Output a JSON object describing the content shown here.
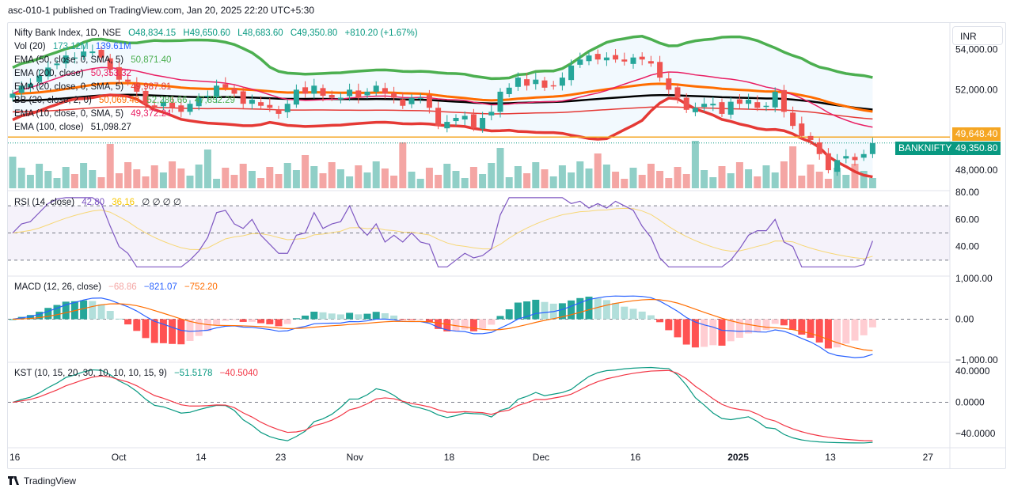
{
  "header": {
    "publish_line": "asc-010-1 published on TradingView.com, Jan 20, 2025 22:20 UTC+5:30"
  },
  "footer": {
    "brand": "TradingView"
  },
  "currency_button": "INR",
  "colors": {
    "up": "#26a69a",
    "down": "#ef5350",
    "up_vol": "#90cfc7",
    "down_vol": "#f4a6a4",
    "bb_upper": "#4caf50",
    "ema200": "#000000",
    "ema100": "#e53935",
    "ema50": "#ff6d00",
    "bb_mid": "#e91e63",
    "rsi": "#7e57c2",
    "macd": "#2962ff",
    "signal": "#ff6d00",
    "kst": "#089981",
    "kst_signal": "#f23645"
  },
  "legend": {
    "main": {
      "name": "Nifty Bank Index, 1D, NSE",
      "o": "O48,834.15",
      "h": "H49,650.60",
      "l": "L48,683.60",
      "c": "C49,350.80",
      "chg": "+810.20 (+1.67%)"
    },
    "vol": {
      "name": "Vol (20)",
      "v1": "173.12M",
      "v2": "139.61M"
    },
    "ema50": {
      "name": "EMA (50, close, 0, SMA, 5)",
      "v": "50,871.40"
    },
    "ema200": {
      "name": "EMA (200, close)",
      "v": "50,353.32"
    },
    "ema20": {
      "name": "EMA (20, close, 0, SMA, 5)",
      "v": "49,987.81"
    },
    "bb": {
      "name": "BB (20, close, 2, 0)",
      "v1": "50,069.48",
      "v2": "52,286.66",
      "v3": "47,852.29"
    },
    "ema10": {
      "name": "EMA (10, close, 0, SMA, 5)",
      "v": "49,372.24"
    },
    "ema100": {
      "name": "EMA (100, close)",
      "v": "51,098.27"
    },
    "rsi": {
      "name": "RSI (14, close)",
      "v1": "42.80",
      "v2": "36.16",
      "extra": "∅ ∅ ∅ ∅"
    },
    "macd": {
      "name": "MACD (12, 26, close)",
      "v1": "−68.86",
      "v2": "−821.07",
      "v3": "−752.20"
    },
    "kst": {
      "name": "KST (10, 15, 20, 30, 10, 10, 10, 15, 9)",
      "v1": "−51.5178",
      "v2": "−40.5040"
    }
  },
  "price_tags": {
    "resistance": "49,648.40",
    "symbol": "BANKNIFTY",
    "last": "49,350.80"
  },
  "chart_data": {
    "type": "candlestick",
    "start_date": "2024-09-16",
    "x_labels": [
      "16",
      "Oct",
      "14",
      "23",
      "Nov",
      "18",
      "Dec",
      "16",
      "2025",
      "13",
      "27"
    ],
    "price_axis": {
      "ticks": [
        "54,000.00",
        "52,000.00",
        "48,000.00"
      ],
      "range": [
        47100,
        55200
      ]
    },
    "rsi_axis": {
      "ticks": [
        "80.00",
        "60.00",
        "40.00"
      ],
      "bands": [
        70,
        50,
        30
      ],
      "range": [
        20,
        80
      ]
    },
    "macd_axis": {
      "ticks": [
        "1,000.00",
        "0.00",
        "−1,000.00"
      ],
      "range": [
        -1000,
        1000
      ]
    },
    "kst_axis": {
      "ticks": [
        "40.0000",
        "0.0000",
        "−40.0000"
      ],
      "range": [
        -55,
        48
      ]
    },
    "closes": [
      51800,
      52200,
      52300,
      52700,
      53100,
      53300,
      53700,
      53600,
      53900,
      53900,
      53600,
      53000,
      52500,
      52400,
      51900,
      51300,
      51100,
      51400,
      51100,
      50900,
      51300,
      51600,
      51700,
      52200,
      52100,
      51800,
      51300,
      51500,
      51200,
      51100,
      50800,
      51300,
      52000,
      51800,
      52200,
      51700,
      51600,
      51600,
      52000,
      51600,
      51900,
      52200,
      51800,
      51600,
      51200,
      51600,
      51600,
      51100,
      50200,
      50400,
      50600,
      50700,
      50100,
      50600,
      50900,
      51900,
      52100,
      52600,
      52200,
      52500,
      52100,
      52200,
      52600,
      53200,
      53500,
      53700,
      53500,
      53600,
      53500,
      53400,
      53600,
      53500,
      53300,
      52600,
      52000,
      51600,
      51000,
      51100,
      51300,
      51300,
      50800,
      51400,
      51300,
      51500,
      51100,
      51200,
      51900,
      50900,
      50200,
      49700,
      49500,
      48800,
      48000,
      48500,
      48700,
      48500,
      48800,
      49350
    ]
  }
}
